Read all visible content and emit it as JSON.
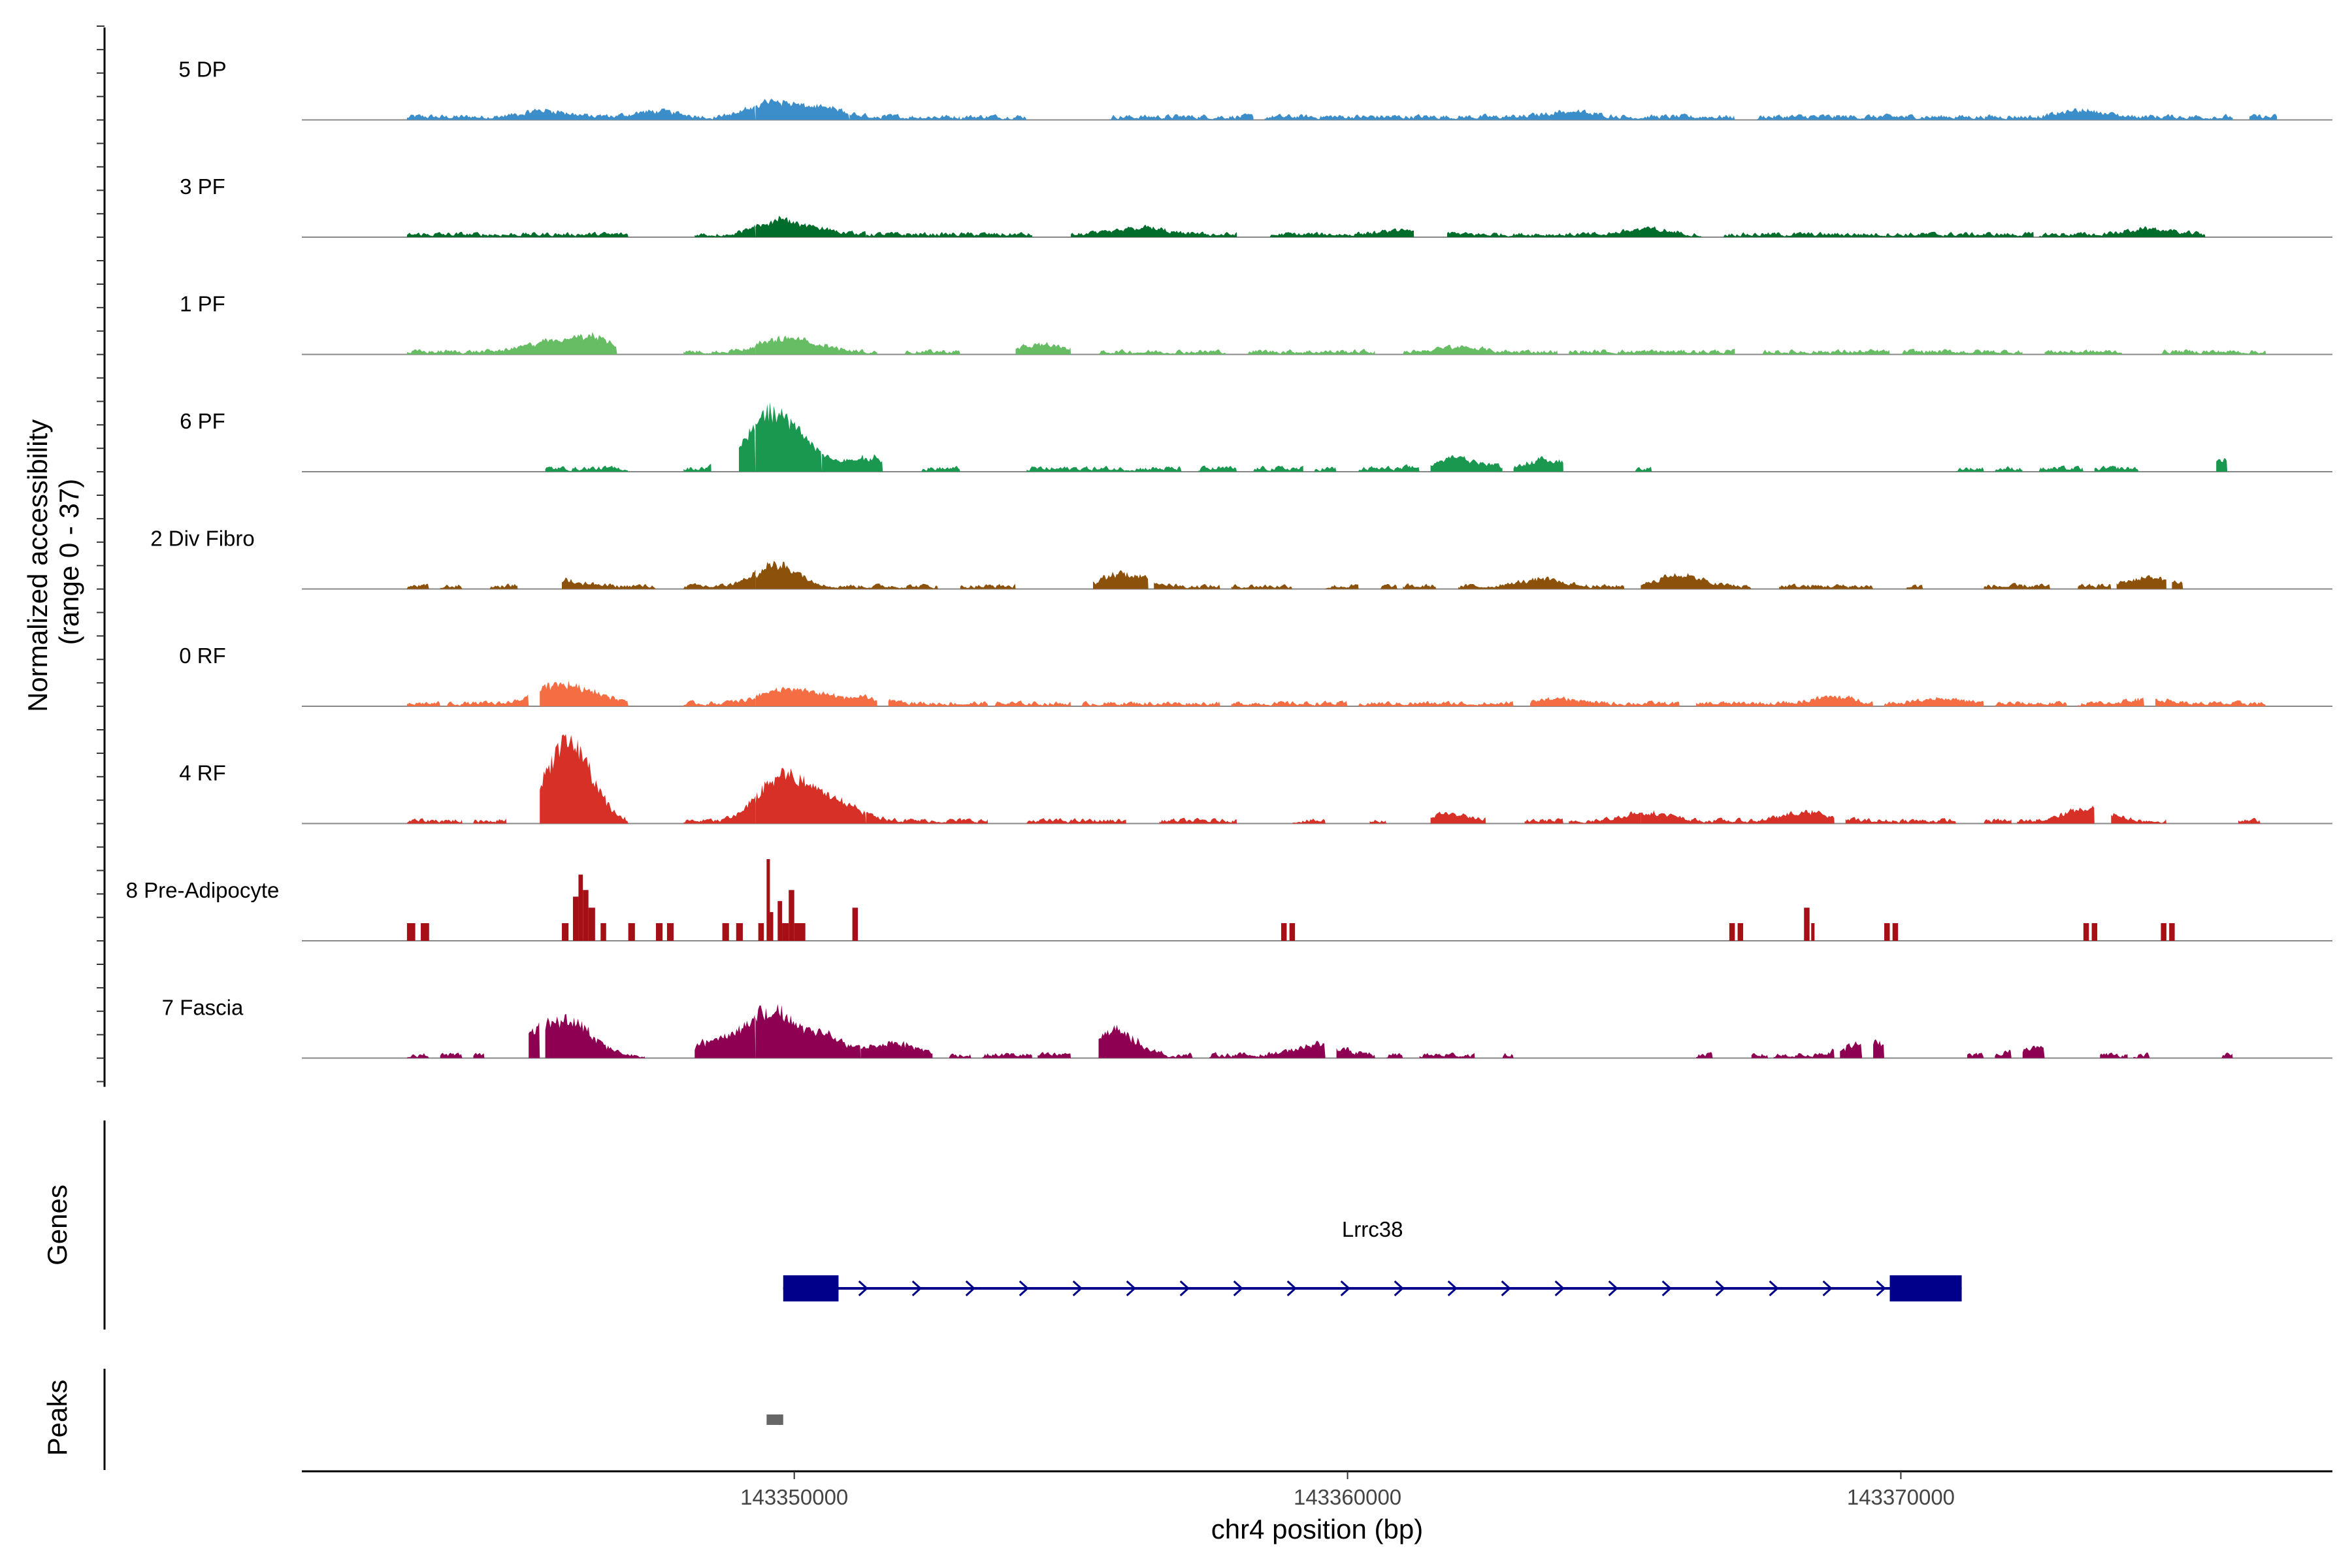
{
  "chart_data": {
    "type": "area",
    "title": "",
    "ylabel_line1": "Normalized accessibility",
    "ylabel_line2": "(range 0 - 37)",
    "y_range": [
      0,
      37
    ],
    "xlabel": "chr4 position (bp)",
    "x_range": [
      143341100,
      143377800
    ],
    "x_ticks": [
      143350000,
      143360000,
      143370000
    ],
    "x_tick_labels": [
      "143350000",
      "143360000",
      "143370000"
    ],
    "tracks": [
      {
        "name": "5 DP",
        "color": "#3B8EC9",
        "style": "area",
        "noise": 2.2,
        "segments": [
          [
            143343000,
            143349300
          ],
          [
            143349300,
            143351000
          ],
          [
            143351000,
            143353000
          ],
          [
            143353000,
            143354200
          ],
          [
            143355700,
            143358300
          ],
          [
            143358500,
            143362000
          ],
          [
            143362000,
            143367000
          ],
          [
            143367400,
            143376000
          ],
          [
            143376300,
            143376800
          ]
        ],
        "peaks": [
          [
            143349600,
            7
          ],
          [
            143350500,
            4
          ],
          [
            143345500,
            3
          ],
          [
            143373300,
            3
          ],
          [
            143347500,
            2.5
          ],
          [
            143364000,
            2.5
          ]
        ]
      },
      {
        "name": "3 PF",
        "color": "#006D2C",
        "style": "area",
        "noise": 2.0,
        "segments": [
          [
            143343000,
            143347000
          ],
          [
            143348200,
            143349300
          ],
          [
            143349300,
            143351300
          ],
          [
            143351300,
            143354300
          ],
          [
            143355000,
            143358000
          ],
          [
            143358600,
            143361200
          ],
          [
            143361800,
            143366400
          ],
          [
            143366800,
            143372400
          ],
          [
            143372500,
            143375500
          ]
        ],
        "peaks": [
          [
            143349700,
            6
          ],
          [
            143350400,
            2
          ],
          [
            143356300,
            3
          ],
          [
            143365400,
            2.5
          ],
          [
            143374500,
            2.5
          ],
          [
            143361100,
            2
          ]
        ]
      },
      {
        "name": "1 PF",
        "color": "#66BD63",
        "style": "area",
        "noise": 2.0,
        "segments": [
          [
            143343000,
            143346800
          ],
          [
            143348000,
            143349300
          ],
          [
            143349300,
            143351500
          ],
          [
            143352000,
            143353000
          ],
          [
            143354000,
            143355000
          ],
          [
            143355500,
            143357800
          ],
          [
            143358200,
            143360500
          ],
          [
            143361000,
            143363800
          ],
          [
            143364000,
            143367000
          ],
          [
            143367500,
            143369800
          ],
          [
            143370000,
            143372200
          ],
          [
            143372600,
            143374000
          ],
          [
            143374700,
            143376600
          ]
        ],
        "peaks": [
          [
            143345500,
            4
          ],
          [
            143346300,
            7
          ],
          [
            143349700,
            5
          ],
          [
            143350300,
            3
          ],
          [
            143354500,
            3
          ],
          [
            143362000,
            2
          ]
        ]
      },
      {
        "name": "6 PF",
        "color": "#1A9850",
        "style": "area",
        "noise": 2.2,
        "segments": [
          [
            143345500,
            143347000
          ],
          [
            143348000,
            143348500
          ],
          [
            143349000,
            143349300
          ],
          [
            143349300,
            143350500
          ],
          [
            143350500,
            143351600
          ],
          [
            143352300,
            143353000
          ],
          [
            143354200,
            143357000
          ],
          [
            143357300,
            143358000
          ],
          [
            143358300,
            143359200
          ],
          [
            143359400,
            143359800
          ],
          [
            143360200,
            143361300
          ],
          [
            143361500,
            143362800
          ],
          [
            143363000,
            143363900
          ],
          [
            143365200,
            143365500
          ],
          [
            143371000,
            143371500
          ],
          [
            143371700,
            143372200
          ],
          [
            143372500,
            143373300
          ],
          [
            143373500,
            143374300
          ],
          [
            143375700,
            143375900
          ]
        ],
        "peaks": [
          [
            143349700,
            19
          ],
          [
            143349300,
            9
          ],
          [
            143350300,
            6
          ],
          [
            143351400,
            5
          ],
          [
            143362000,
            5
          ],
          [
            143363600,
            4
          ],
          [
            143375800,
            4
          ]
        ]
      },
      {
        "name": "2 Div Fibro",
        "color": "#8C510A",
        "style": "area",
        "noise": 2.0,
        "segments": [
          [
            143343000,
            143343400
          ],
          [
            143343600,
            143344000
          ],
          [
            143344500,
            143345000
          ],
          [
            143345800,
            143347500
          ],
          [
            143348000,
            143349300
          ],
          [
            143349300,
            143352600
          ],
          [
            143353000,
            143354000
          ],
          [
            143355400,
            143356400
          ],
          [
            143356500,
            143357700
          ],
          [
            143357900,
            143359000
          ],
          [
            143359600,
            143360200
          ],
          [
            143360600,
            143360900
          ],
          [
            143361000,
            143361600
          ],
          [
            143362000,
            143365000
          ],
          [
            143365300,
            143367300
          ],
          [
            143367800,
            143369500
          ],
          [
            143370100,
            143370400
          ],
          [
            143371500,
            143372700
          ],
          [
            143373200,
            143373800
          ],
          [
            143373900,
            143374800
          ],
          [
            143374900,
            143375100
          ]
        ],
        "peaks": [
          [
            143349700,
            10
          ],
          [
            143356000,
            6
          ],
          [
            143345800,
            3
          ],
          [
            143366000,
            5
          ],
          [
            143374500,
            4
          ],
          [
            143363500,
            3
          ]
        ]
      },
      {
        "name": "0 RF",
        "color": "#F46D43",
        "style": "area",
        "noise": 2.0,
        "segments": [
          [
            143343000,
            143343600
          ],
          [
            143343700,
            143345200
          ],
          [
            143345400,
            143347000
          ],
          [
            143348000,
            143349300
          ],
          [
            143349300,
            143351500
          ],
          [
            143351700,
            143353500
          ],
          [
            143353600,
            143355000
          ],
          [
            143355200,
            143357700
          ],
          [
            143357900,
            143360000
          ],
          [
            143360200,
            143363000
          ],
          [
            143363300,
            143366000
          ],
          [
            143366300,
            143369500
          ],
          [
            143369700,
            143371500
          ],
          [
            143371700,
            143373000
          ],
          [
            143373200,
            143374400
          ],
          [
            143374600,
            143376600
          ]
        ],
        "peaks": [
          [
            143345700,
            8
          ],
          [
            143346400,
            4
          ],
          [
            143349700,
            5
          ],
          [
            143350300,
            4
          ],
          [
            143351200,
            2.5
          ],
          [
            143363800,
            2
          ],
          [
            143368800,
            3
          ],
          [
            143370700,
            2.5
          ],
          [
            143374500,
            2
          ]
        ]
      },
      {
        "name": "4 RF",
        "color": "#D73027",
        "style": "area",
        "noise": 2.0,
        "segments": [
          [
            143343000,
            143344000
          ],
          [
            143344200,
            143344800
          ],
          [
            143345400,
            143347000
          ],
          [
            143348000,
            143349300
          ],
          [
            143349300,
            143351300
          ],
          [
            143351300,
            143353500
          ],
          [
            143354200,
            143356000
          ],
          [
            143356600,
            143358000
          ],
          [
            143359000,
            143359600
          ],
          [
            143360400,
            143360700
          ],
          [
            143361500,
            143362500
          ],
          [
            143363200,
            143363900
          ],
          [
            143364000,
            143365300
          ],
          [
            143365300,
            143368800
          ],
          [
            143369000,
            143371000
          ],
          [
            143371500,
            143372000
          ],
          [
            143372100,
            143373500
          ],
          [
            143373800,
            143374800
          ],
          [
            143376100,
            143376500
          ]
        ],
        "peaks": [
          [
            143346000,
            27
          ],
          [
            143345700,
            12
          ],
          [
            143349700,
            19
          ],
          [
            143350400,
            11
          ],
          [
            143351000,
            4
          ],
          [
            143361800,
            3
          ],
          [
            143368300,
            4
          ],
          [
            143373400,
            6
          ],
          [
            143365400,
            4
          ]
        ]
      },
      {
        "name": "8 Pre-Adipocyte",
        "color": "#A50F15",
        "style": "bars",
        "bars": [
          [
            143343000,
            143343150,
            8
          ],
          [
            143343250,
            143343400,
            8
          ],
          [
            143345800,
            143345920,
            8
          ],
          [
            143346000,
            143346100,
            20
          ],
          [
            143346100,
            143346180,
            30
          ],
          [
            143346180,
            143346280,
            23
          ],
          [
            143346280,
            143346400,
            15
          ],
          [
            143346500,
            143346600,
            8
          ],
          [
            143347000,
            143347120,
            8
          ],
          [
            143347500,
            143347620,
            8
          ],
          [
            143347700,
            143347820,
            8
          ],
          [
            143348700,
            143348820,
            8
          ],
          [
            143348950,
            143349070,
            8
          ],
          [
            143349350,
            143349450,
            8
          ],
          [
            143349500,
            143349560,
            37
          ],
          [
            143349560,
            143349620,
            13
          ],
          [
            143349700,
            143349780,
            18
          ],
          [
            143349780,
            143349900,
            8
          ],
          [
            143349900,
            143350000,
            23
          ],
          [
            143350000,
            143350080,
            8
          ],
          [
            143350080,
            143350200,
            8
          ],
          [
            143351050,
            143351150,
            15
          ],
          [
            143358800,
            143358900,
            8
          ],
          [
            143358950,
            143359050,
            8
          ],
          [
            143366900,
            143367000,
            8
          ],
          [
            143367050,
            143367150,
            8
          ],
          [
            143368250,
            143368350,
            15
          ],
          [
            143368380,
            143368440,
            8
          ],
          [
            143369700,
            143369800,
            8
          ],
          [
            143369850,
            143369950,
            8
          ],
          [
            143373300,
            143373400,
            8
          ],
          [
            143373450,
            143373550,
            8
          ],
          [
            143374700,
            143374800,
            8
          ],
          [
            143374850,
            143374950,
            8
          ]
        ]
      },
      {
        "name": "7 Fascia",
        "color": "#8E0152",
        "style": "area",
        "noise": 2.2,
        "segments": [
          [
            143343000,
            143343400
          ],
          [
            143343600,
            143344000
          ],
          [
            143344200,
            143344400
          ],
          [
            143345200,
            143345400
          ],
          [
            143345500,
            143347300
          ],
          [
            143348200,
            143349300
          ],
          [
            143349300,
            143351200
          ],
          [
            143351200,
            143352500
          ],
          [
            143352800,
            143353200
          ],
          [
            143353400,
            143354300
          ],
          [
            143354400,
            143355000
          ],
          [
            143355500,
            143357200
          ],
          [
            143357500,
            143359600
          ],
          [
            143359800,
            143360500
          ],
          [
            143360700,
            143361000
          ],
          [
            143361300,
            143362300
          ],
          [
            143362800,
            143363000
          ],
          [
            143366300,
            143366600
          ],
          [
            143367300,
            143367600
          ],
          [
            143367700,
            143368800
          ],
          [
            143368900,
            143369300
          ],
          [
            143369500,
            143369700
          ],
          [
            143371200,
            143371500
          ],
          [
            143371700,
            143372000
          ],
          [
            143372200,
            143372600
          ],
          [
            143373600,
            143374100
          ],
          [
            143374200,
            143374500
          ],
          [
            143375800,
            143376000
          ]
        ],
        "peaks": [
          [
            143349600,
            20
          ],
          [
            143346000,
            14
          ],
          [
            143345300,
            10
          ],
          [
            143355800,
            11
          ],
          [
            143350500,
            9
          ],
          [
            143348700,
            8
          ],
          [
            143351800,
            6
          ],
          [
            143369400,
            6
          ],
          [
            143359500,
            5
          ],
          [
            143372500,
            4
          ]
        ]
      }
    ],
    "genes_label": "Genes",
    "gene": {
      "name": "Lrrc38",
      "start": 143349800,
      "end": 143371100,
      "strand": "+",
      "exons": [
        [
          143349800,
          143350800
        ],
        [
          143369800,
          143371100
        ]
      ],
      "color": "#00008B"
    },
    "peaks_label": "Peaks",
    "peak_regions": [
      [
        143349500,
        143349800
      ]
    ],
    "peak_color": "#666666"
  }
}
